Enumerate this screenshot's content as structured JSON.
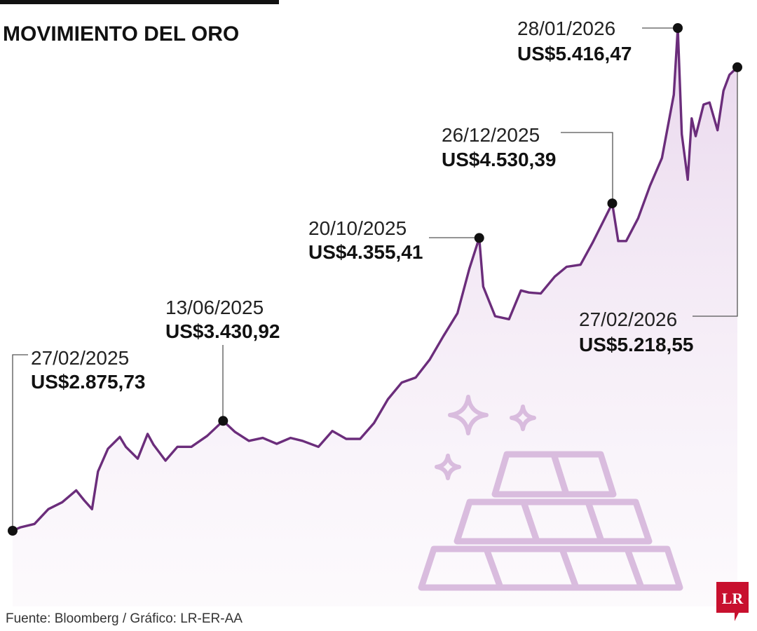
{
  "title": "MOVIMIENTO DEL ORO",
  "source": "Fuente: Bloomberg / Gráfico: LR-ER-AA",
  "logo": "LR",
  "colors": {
    "line": "#6b2d7b",
    "area": "#efe3f1",
    "illustration": "#d9bcde",
    "logo": "#c8102e"
  },
  "illustration": [
    "gold-bars-icon",
    "sparkle-icon"
  ],
  "chart_data": {
    "type": "line",
    "title": "MOVIMIENTO DEL ORO",
    "xlabel": "",
    "ylabel": "",
    "x_range": [
      "2025-02-27",
      "2026-02-27"
    ],
    "ylim": [
      2800,
      5450
    ],
    "grid": false,
    "series": [
      {
        "values": [
          [
            "2025-02-27",
            2875.73
          ],
          [
            "2025-03-03",
            2893
          ],
          [
            "2025-03-10",
            2910
          ],
          [
            "2025-03-17",
            2985
          ],
          [
            "2025-03-24",
            3020
          ],
          [
            "2025-03-31",
            3080
          ],
          [
            "2025-04-04",
            3030
          ],
          [
            "2025-04-08",
            2985
          ],
          [
            "2025-04-11",
            3175
          ],
          [
            "2025-04-16",
            3290
          ],
          [
            "2025-04-22",
            3350
          ],
          [
            "2025-04-25",
            3300
          ],
          [
            "2025-05-01",
            3240
          ],
          [
            "2025-05-06",
            3365
          ],
          [
            "2025-05-09",
            3310
          ],
          [
            "2025-05-15",
            3230
          ],
          [
            "2025-05-21",
            3300
          ],
          [
            "2025-05-28",
            3300
          ],
          [
            "2025-06-05",
            3355
          ],
          [
            "2025-06-13",
            3430.92
          ],
          [
            "2025-06-19",
            3375
          ],
          [
            "2025-06-26",
            3330
          ],
          [
            "2025-07-03",
            3345
          ],
          [
            "2025-07-10",
            3315
          ],
          [
            "2025-07-17",
            3345
          ],
          [
            "2025-07-23",
            3330
          ],
          [
            "2025-07-31",
            3300
          ],
          [
            "2025-08-07",
            3380
          ],
          [
            "2025-08-14",
            3340
          ],
          [
            "2025-08-21",
            3340
          ],
          [
            "2025-08-28",
            3420
          ],
          [
            "2025-09-04",
            3540
          ],
          [
            "2025-09-11",
            3625
          ],
          [
            "2025-09-18",
            3650
          ],
          [
            "2025-09-25",
            3740
          ],
          [
            "2025-10-02",
            3860
          ],
          [
            "2025-10-09",
            3975
          ],
          [
            "2025-10-15",
            4200
          ],
          [
            "2025-10-20",
            4355.41
          ],
          [
            "2025-10-22",
            4110
          ],
          [
            "2025-10-28",
            3960
          ],
          [
            "2025-11-04",
            3945
          ],
          [
            "2025-11-10",
            4090
          ],
          [
            "2025-11-14",
            4080
          ],
          [
            "2025-11-20",
            4075
          ],
          [
            "2025-11-27",
            4160
          ],
          [
            "2025-12-03",
            4210
          ],
          [
            "2025-12-10",
            4220
          ],
          [
            "2025-12-16",
            4330
          ],
          [
            "2025-12-22",
            4450
          ],
          [
            "2025-12-26",
            4530.39
          ],
          [
            "2025-12-29",
            4340
          ],
          [
            "2026-01-02",
            4340
          ],
          [
            "2026-01-08",
            4455
          ],
          [
            "2026-01-14",
            4620
          ],
          [
            "2026-01-20",
            4760
          ],
          [
            "2026-01-26",
            5080
          ],
          [
            "2026-01-28",
            5416.47
          ],
          [
            "2026-01-30",
            4880
          ],
          [
            "2026-02-02",
            4650
          ],
          [
            "2026-02-04",
            4960
          ],
          [
            "2026-02-06",
            4870
          ],
          [
            "2026-02-10",
            5030
          ],
          [
            "2026-02-13",
            5040
          ],
          [
            "2026-02-17",
            4900
          ],
          [
            "2026-02-20",
            5100
          ],
          [
            "2026-02-23",
            5180
          ],
          [
            "2026-02-27",
            5218.55
          ]
        ]
      }
    ],
    "annotations": [
      {
        "date": "27/02/2025",
        "value": "US$2.875,73",
        "x": "2025-02-27",
        "y": 2875.73
      },
      {
        "date": "13/06/2025",
        "value": "US$3.430,92",
        "x": "2025-06-13",
        "y": 3430.92
      },
      {
        "date": "20/10/2025",
        "value": "US$4.355,41",
        "x": "2025-10-20",
        "y": 4355.41
      },
      {
        "date": "26/12/2025",
        "value": "US$4.530,39",
        "x": "2025-12-26",
        "y": 4530.39
      },
      {
        "date": "28/01/2026",
        "value": "US$5.416,47",
        "x": "2026-01-28",
        "y": 5416.47
      },
      {
        "date": "27/02/2026",
        "value": "US$5.218,55",
        "x": "2026-02-27",
        "y": 5218.55
      }
    ]
  }
}
